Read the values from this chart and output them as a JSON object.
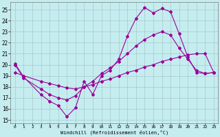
{
  "xlabel": "Windchill (Refroidissement éolien,°C)",
  "bg_color": "#c5edf0",
  "grid_color": "#9fbfbf",
  "line_color": "#990099",
  "ylim": [
    14.7,
    25.7
  ],
  "xlim": [
    -0.5,
    23.5
  ],
  "yticks": [
    15,
    16,
    17,
    18,
    19,
    20,
    21,
    22,
    23,
    24,
    25
  ],
  "xticks": [
    0,
    1,
    2,
    3,
    4,
    5,
    6,
    7,
    8,
    9,
    10,
    11,
    12,
    13,
    14,
    15,
    16,
    17,
    18,
    19,
    20,
    21,
    22,
    23
  ],
  "line1_x": [
    0,
    1,
    3,
    4,
    5,
    6,
    7,
    8,
    9,
    10,
    11,
    12,
    13,
    14,
    15,
    16,
    17,
    18,
    19,
    20,
    21,
    22,
    23
  ],
  "line1_y": [
    20.1,
    18.9,
    17.3,
    16.7,
    16.3,
    15.3,
    16.1,
    18.5,
    17.3,
    19.0,
    19.5,
    20.5,
    22.6,
    24.2,
    25.2,
    24.7,
    25.1,
    24.8,
    22.8,
    20.7,
    19.3,
    19.2,
    19.3
  ],
  "line2_x": [
    0,
    1,
    3,
    4,
    5,
    6,
    7,
    8,
    9,
    10,
    11,
    12,
    13,
    14,
    15,
    16,
    17,
    18,
    19,
    20,
    21,
    22,
    23
  ],
  "line2_y": [
    19.3,
    19.0,
    18.5,
    18.3,
    18.1,
    17.9,
    17.8,
    18.0,
    18.2,
    18.5,
    18.7,
    19.0,
    19.3,
    19.5,
    19.8,
    20.0,
    20.3,
    20.5,
    20.7,
    20.9,
    21.0,
    21.0,
    19.3
  ],
  "line3_x": [
    0,
    1,
    3,
    4,
    5,
    6,
    7,
    8,
    9,
    10,
    11,
    12,
    13,
    14,
    15,
    16,
    17,
    18,
    19,
    20,
    21,
    22,
    23
  ],
  "line3_y": [
    20.0,
    18.8,
    17.8,
    17.3,
    17.0,
    16.8,
    17.2,
    18.0,
    18.5,
    19.2,
    19.7,
    20.3,
    21.0,
    21.7,
    22.3,
    22.7,
    23.0,
    22.7,
    21.5,
    20.5,
    19.5,
    19.2,
    19.3
  ]
}
